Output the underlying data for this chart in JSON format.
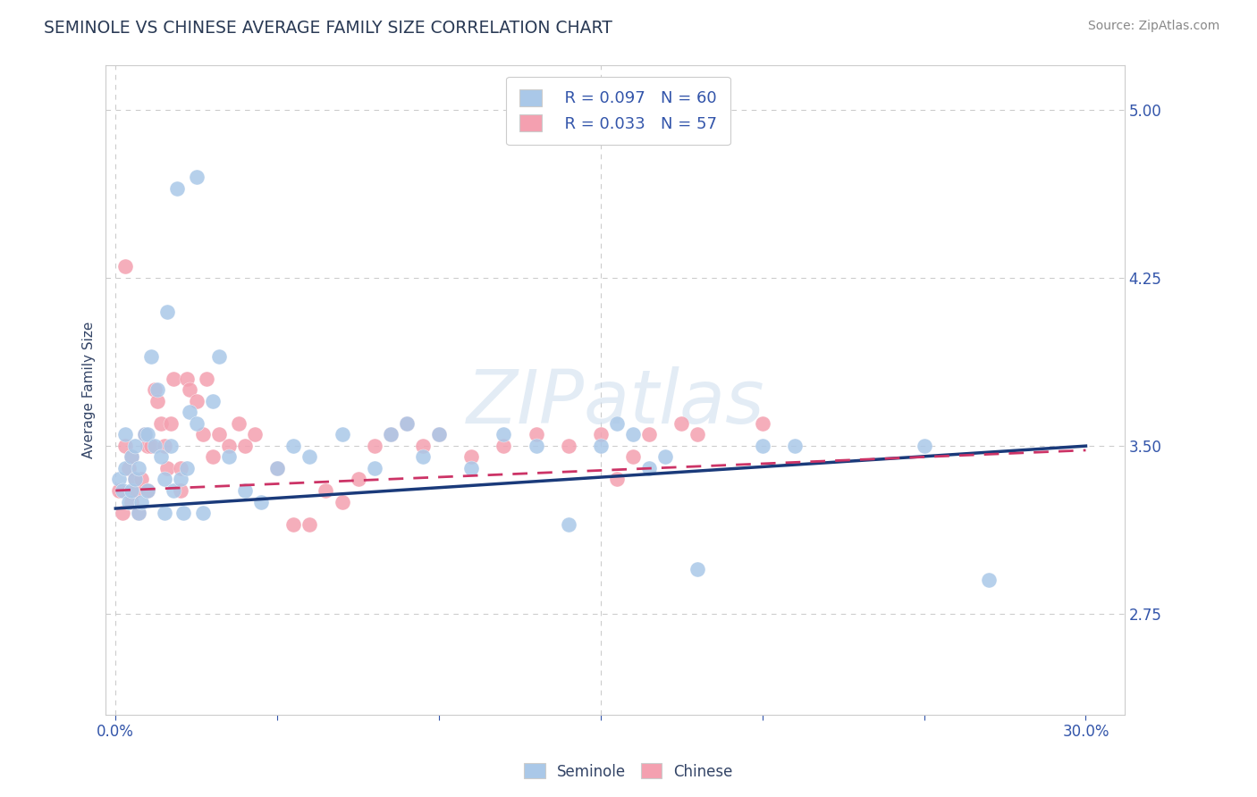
{
  "title": "SEMINOLE VS CHINESE AVERAGE FAMILY SIZE CORRELATION CHART",
  "source": "Source: ZipAtlas.com",
  "ylabel": "Average Family Size",
  "ylim": [
    2.3,
    5.2
  ],
  "xlim": [
    -0.003,
    0.312
  ],
  "yticks": [
    2.75,
    3.5,
    4.25,
    5.0
  ],
  "xticks": [
    0.0,
    0.05,
    0.1,
    0.15,
    0.2,
    0.25,
    0.3
  ],
  "background_color": "#ffffff",
  "grid_color": "#cccccc",
  "seminole_color": "#aac8e8",
  "chinese_color": "#f4a0b0",
  "seminole_line_color": "#1a3a7a",
  "chinese_line_color": "#cc3366",
  "watermark": "ZIPatlas",
  "legend_R_seminole": "R = 0.097",
  "legend_N_seminole": "N = 60",
  "legend_R_chinese": "R = 0.033",
  "legend_N_chinese": "N = 57",
  "seminole_intercept": 3.22,
  "seminole_slope": 0.93,
  "chinese_intercept": 3.3,
  "chinese_slope": 0.6,
  "seminole_x": [
    0.001,
    0.002,
    0.003,
    0.003,
    0.004,
    0.005,
    0.005,
    0.006,
    0.006,
    0.007,
    0.007,
    0.008,
    0.009,
    0.01,
    0.01,
    0.011,
    0.012,
    0.013,
    0.014,
    0.015,
    0.015,
    0.016,
    0.017,
    0.018,
    0.019,
    0.02,
    0.021,
    0.022,
    0.023,
    0.025,
    0.025,
    0.027,
    0.03,
    0.032,
    0.035,
    0.04,
    0.045,
    0.05,
    0.055,
    0.06,
    0.07,
    0.08,
    0.085,
    0.09,
    0.095,
    0.1,
    0.11,
    0.12,
    0.13,
    0.14,
    0.15,
    0.155,
    0.16,
    0.165,
    0.17,
    0.18,
    0.2,
    0.21,
    0.25,
    0.27
  ],
  "seminole_y": [
    3.35,
    3.3,
    3.4,
    3.55,
    3.25,
    3.45,
    3.3,
    3.5,
    3.35,
    3.4,
    3.2,
    3.25,
    3.55,
    3.55,
    3.3,
    3.9,
    3.5,
    3.75,
    3.45,
    3.2,
    3.35,
    4.1,
    3.5,
    3.3,
    4.65,
    3.35,
    3.2,
    3.4,
    3.65,
    3.6,
    4.7,
    3.2,
    3.7,
    3.9,
    3.45,
    3.3,
    3.25,
    3.4,
    3.5,
    3.45,
    3.55,
    3.4,
    3.55,
    3.6,
    3.45,
    3.55,
    3.4,
    3.55,
    3.5,
    3.15,
    3.5,
    3.6,
    3.55,
    3.4,
    3.45,
    2.95,
    3.5,
    3.5,
    3.5,
    2.9
  ],
  "chinese_x": [
    0.001,
    0.002,
    0.003,
    0.003,
    0.004,
    0.005,
    0.005,
    0.006,
    0.006,
    0.007,
    0.008,
    0.009,
    0.01,
    0.01,
    0.011,
    0.012,
    0.013,
    0.014,
    0.015,
    0.016,
    0.017,
    0.018,
    0.02,
    0.02,
    0.022,
    0.023,
    0.025,
    0.027,
    0.028,
    0.03,
    0.032,
    0.035,
    0.038,
    0.04,
    0.043,
    0.05,
    0.055,
    0.06,
    0.065,
    0.07,
    0.075,
    0.08,
    0.085,
    0.09,
    0.095,
    0.1,
    0.11,
    0.12,
    0.13,
    0.14,
    0.15,
    0.155,
    0.16,
    0.165,
    0.175,
    0.18,
    0.2
  ],
  "chinese_y": [
    3.3,
    3.2,
    4.3,
    3.5,
    3.4,
    3.25,
    3.45,
    3.35,
    3.3,
    3.2,
    3.35,
    3.55,
    3.5,
    3.3,
    3.5,
    3.75,
    3.7,
    3.6,
    3.5,
    3.4,
    3.6,
    3.8,
    3.4,
    3.3,
    3.8,
    3.75,
    3.7,
    3.55,
    3.8,
    3.45,
    3.55,
    3.5,
    3.6,
    3.5,
    3.55,
    3.4,
    3.15,
    3.15,
    3.3,
    3.25,
    3.35,
    3.5,
    3.55,
    3.6,
    3.5,
    3.55,
    3.45,
    3.5,
    3.55,
    3.5,
    3.55,
    3.35,
    3.45,
    3.55,
    3.6,
    3.55,
    3.6
  ]
}
